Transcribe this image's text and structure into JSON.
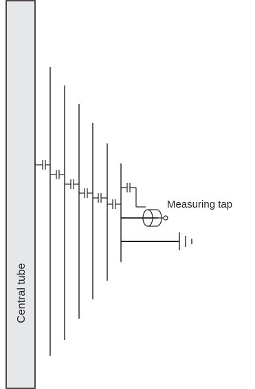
{
  "labels": {
    "tube": "Central tube",
    "tap": "Measuring tap"
  },
  "colors": {
    "line": "#231f20",
    "tube_fill": "#e6e7e8",
    "background": "#ffffff"
  }
}
